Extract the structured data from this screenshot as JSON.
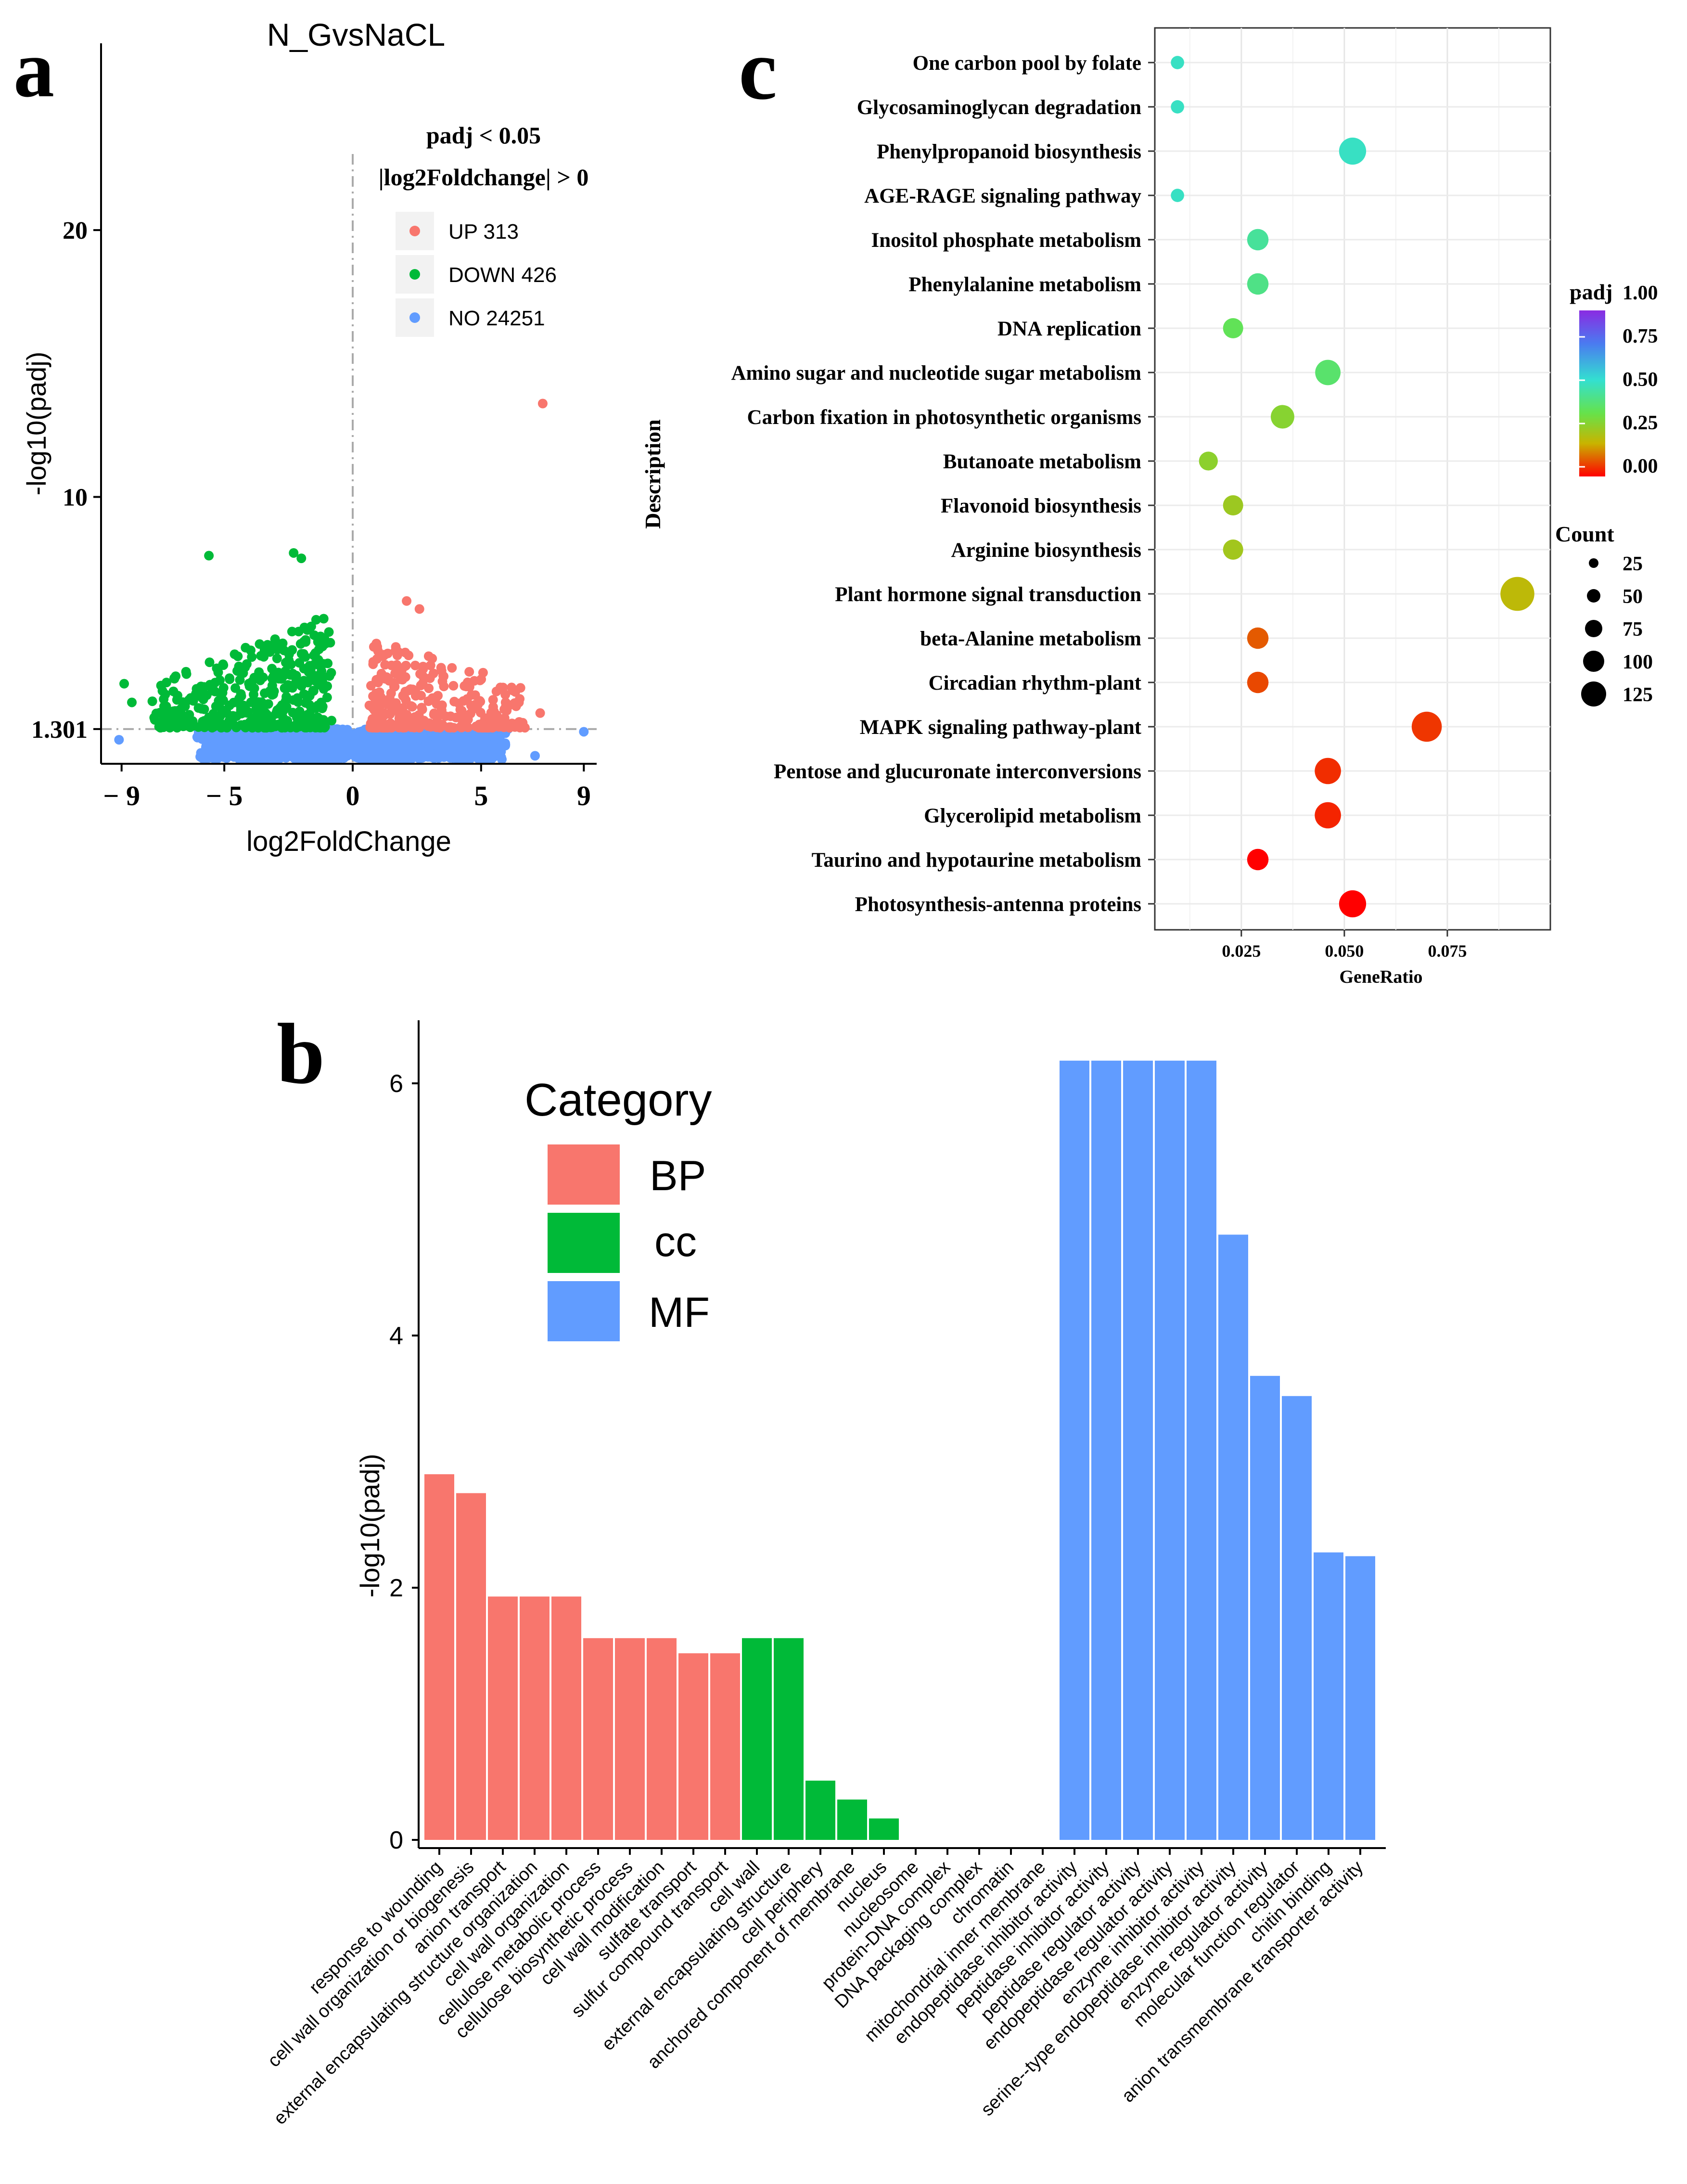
{
  "panels": {
    "a": {
      "letter": "a"
    },
    "b": {
      "letter": "b"
    },
    "c": {
      "letter": "c"
    }
  },
  "colors": {
    "up": "#F8766D",
    "down": "#00BA38",
    "no": "#619CFF",
    "bp": "#F8766D",
    "cc": "#00BA38",
    "mf": "#619CFF"
  },
  "chart_data": [
    {
      "id": "volcano",
      "type": "scatter",
      "title": "N_GvsNaCL",
      "xlabel": "log2FoldChange",
      "ylabel": "-log10(padj)",
      "xlim": [
        -9.8,
        9.5
      ],
      "ylim": [
        0,
        27
      ],
      "x_ticks": [
        -9,
        -5,
        0,
        5,
        9
      ],
      "x_tick_labels": [
        "− 9",
        "− 5",
        "0",
        "5",
        "9"
      ],
      "y_ticks": [
        1.301,
        10,
        20
      ],
      "y_tick_labels": [
        "1.301",
        "10",
        "20"
      ],
      "threshold_y": 1.301,
      "threshold_x": 0,
      "legend": {
        "title_line1": "padj < 0.05",
        "title_line2": "|log2Foldchange| > 0",
        "entries": [
          {
            "key": "up",
            "label": "UP 313"
          },
          {
            "key": "down",
            "label": "DOWN 426"
          },
          {
            "key": "no",
            "label": "NO 24251"
          }
        ]
      },
      "highlight_points": [
        {
          "group": "up",
          "x": 7.4,
          "y": 13.5
        },
        {
          "group": "up",
          "x": 7.3,
          "y": 1.9
        },
        {
          "group": "up",
          "x": 6.1,
          "y": 2.2
        },
        {
          "group": "up",
          "x": 2.1,
          "y": 6.1
        },
        {
          "group": "up",
          "x": 2.6,
          "y": 5.8
        },
        {
          "group": "down",
          "x": -5.6,
          "y": 7.8
        },
        {
          "group": "down",
          "x": -2.3,
          "y": 7.9
        },
        {
          "group": "down",
          "x": -2.0,
          "y": 7.7
        },
        {
          "group": "down",
          "x": -8.9,
          "y": 3.0
        },
        {
          "group": "down",
          "x": -8.6,
          "y": 2.3
        },
        {
          "group": "down",
          "x": -7.3,
          "y": 2.6
        },
        {
          "group": "no",
          "x": -9.1,
          "y": 0.9
        },
        {
          "group": "no",
          "x": 9.0,
          "y": 1.2
        },
        {
          "group": "no",
          "x": 7.1,
          "y": 0.3
        }
      ]
    },
    {
      "id": "go_bar",
      "type": "bar",
      "ylabel": "-log10(padj)",
      "ylim": [
        0,
        6.5
      ],
      "y_ticks": [
        0,
        2,
        4,
        6
      ],
      "legend_title": "Category",
      "legend": [
        {
          "key": "bp",
          "label": "BP"
        },
        {
          "key": "cc",
          "label": "cc"
        },
        {
          "key": "mf",
          "label": "MF"
        }
      ],
      "categories": [
        "response to wounding",
        "cell wall organization or biogenesis",
        "anion transport",
        "external encapsulating structure organization",
        "cell wall organization",
        "cellulose metabolic process",
        "cellulose biosynthetic process",
        "cell wall modification",
        "sulfate transport",
        "sulfur compound transport",
        "cell wall",
        "external encapsulating structure",
        "cell periphery",
        "anchored component of membrane",
        "nucleus",
        "nucleosome",
        "protein-DNA complex",
        "DNA packaging complex",
        "chromatin",
        "mitochondrial inner membrane",
        "endopeptidase inhibitor activity",
        "peptidase inhibitor activity",
        "peptidase regulator activity",
        "endopeptidase regulator activity",
        "enzyme inhibitor activity",
        "serine--type endopeptidase inhibitor activity",
        "enzyme regulator activity",
        "molecular function regulator",
        "chitin binding",
        "anion transmembrane transporter activity"
      ],
      "groups": [
        "bp",
        "bp",
        "bp",
        "bp",
        "bp",
        "bp",
        "bp",
        "bp",
        "bp",
        "bp",
        "cc",
        "cc",
        "cc",
        "cc",
        "cc",
        "cc",
        "cc",
        "cc",
        "cc",
        "cc",
        "mf",
        "mf",
        "mf",
        "mf",
        "mf",
        "mf",
        "mf",
        "mf",
        "mf",
        "mf"
      ],
      "values": [
        2.9,
        2.75,
        1.93,
        1.93,
        1.93,
        1.6,
        1.6,
        1.6,
        1.48,
        1.48,
        1.6,
        1.6,
        0.47,
        0.32,
        0.17,
        0,
        0,
        0,
        0,
        0,
        6.18,
        6.18,
        6.18,
        6.18,
        6.18,
        4.8,
        3.68,
        3.52,
        2.28,
        2.25
      ]
    },
    {
      "id": "kegg_dot",
      "type": "scatter",
      "xlabel": "GeneRatio",
      "ylabel": "Description",
      "xlim": [
        0.004,
        0.1
      ],
      "x_ticks": [
        0.025,
        0.05,
        0.075
      ],
      "x_tick_labels": [
        "0.025",
        "0.050",
        "0.075"
      ],
      "color_legend_title": "padj",
      "color_ticks": [
        "1.00",
        "0.75",
        "0.50",
        "0.25",
        "0.00"
      ],
      "size_legend_title": "Count",
      "size_ticks": [
        "25",
        "50",
        "75",
        "100",
        "125"
      ],
      "terms": [
        "One carbon pool by folate",
        "Glycosaminoglycan degradation",
        "Phenylpropanoid biosynthesis",
        "AGE-RAGE signaling pathway",
        "Inositol phosphate metabolism",
        "Phenylalanine metabolism",
        "DNA replication",
        "Amino sugar and nucleotide sugar metabolism",
        "Carbon fixation in photosynthetic organisms",
        "Butanoate metabolism",
        "Flavonoid biosynthesis",
        "Arginine biosynthesis",
        "Plant hormone signal transduction",
        "beta-Alanine metabolism",
        "Circadian rhythm-plant",
        "MAPK signaling pathway-plant",
        "Pentose and glucuronate interconversions",
        "Glycerolipid metabolism",
        "Taurino and hypotaurine metabolism",
        "Photosynthesis-antenna proteins"
      ],
      "gene_ratio": [
        0.0095,
        0.0095,
        0.052,
        0.0095,
        0.029,
        0.029,
        0.023,
        0.046,
        0.035,
        0.017,
        0.023,
        0.023,
        0.092,
        0.029,
        0.029,
        0.07,
        0.046,
        0.046,
        0.029,
        0.052
      ],
      "count": [
        5,
        5,
        60,
        5,
        30,
        30,
        25,
        50,
        40,
        20,
        25,
        25,
        110,
        30,
        30,
        80,
        55,
        55,
        30,
        60
      ],
      "padj": [
        0.56,
        0.56,
        0.56,
        0.56,
        0.5,
        0.47,
        0.4,
        0.43,
        0.32,
        0.31,
        0.28,
        0.27,
        0.22,
        0.1,
        0.08,
        0.06,
        0.05,
        0.04,
        0.0,
        0.0
      ]
    }
  ]
}
